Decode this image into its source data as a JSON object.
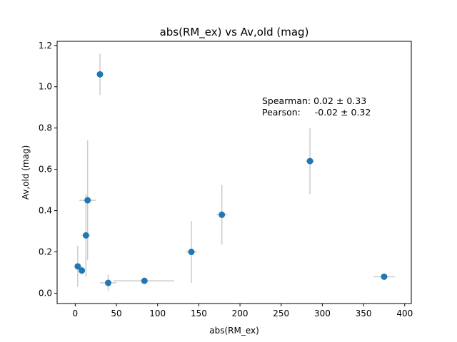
{
  "chart_data": {
    "type": "scatter",
    "title": "abs(RM_ex) vs Av,old (mag)",
    "xlabel": "abs(RM_ex)",
    "ylabel": "Av,old (mag)",
    "xlim": [
      -22,
      408
    ],
    "ylim": [
      -0.05,
      1.22
    ],
    "xticks": [
      0,
      50,
      100,
      150,
      200,
      250,
      300,
      350,
      400
    ],
    "yticks": [
      0.0,
      0.2,
      0.4,
      0.6,
      0.8,
      1.0,
      1.2
    ],
    "ytick_labels": [
      "0.0",
      "0.2",
      "0.4",
      "0.6",
      "0.8",
      "1.0",
      "1.2"
    ],
    "grid": false,
    "marker_color": "#1f77b4",
    "errorbar_color": "#cccccc",
    "points": [
      {
        "x": 30,
        "y": 1.06,
        "xerr": [
          3,
          3
        ],
        "yerr": [
          0.1,
          0.1
        ]
      },
      {
        "x": 15,
        "y": 0.45,
        "xerr": [
          10,
          10
        ],
        "yerr": [
          0.29,
          0.29
        ]
      },
      {
        "x": 13,
        "y": 0.28,
        "xerr": [
          5,
          5
        ],
        "yerr": [
          0.2,
          0.2
        ]
      },
      {
        "x": 3,
        "y": 0.13,
        "xerr": [
          2,
          2
        ],
        "yerr": [
          0.1,
          0.1
        ]
      },
      {
        "x": 8,
        "y": 0.11,
        "xerr": [
          3,
          3
        ],
        "yerr": [
          0.02,
          0.02
        ]
      },
      {
        "x": 40,
        "y": 0.05,
        "xerr": [
          10,
          10
        ],
        "yerr": [
          0.04,
          0.04
        ]
      },
      {
        "x": 84,
        "y": 0.06,
        "xerr": [
          38,
          36
        ],
        "yerr": [
          0.0,
          0.0
        ]
      },
      {
        "x": 141,
        "y": 0.2,
        "xerr": [
          7,
          7
        ],
        "yerr": [
          0.15,
          0.15
        ]
      },
      {
        "x": 178,
        "y": 0.38,
        "xerr": [
          7,
          7
        ],
        "yerr": [
          0.145,
          0.145
        ]
      },
      {
        "x": 285,
        "y": 0.64,
        "xerr": [
          5,
          5
        ],
        "yerr": [
          0.16,
          0.16
        ]
      },
      {
        "x": 375,
        "y": 0.08,
        "xerr": [
          13,
          13
        ],
        "yerr": [
          0.0,
          0.0
        ]
      }
    ],
    "annotations": [
      "Spearman: 0.02 ± 0.33",
      "Pearson:     -0.02 ± 0.32"
    ]
  }
}
